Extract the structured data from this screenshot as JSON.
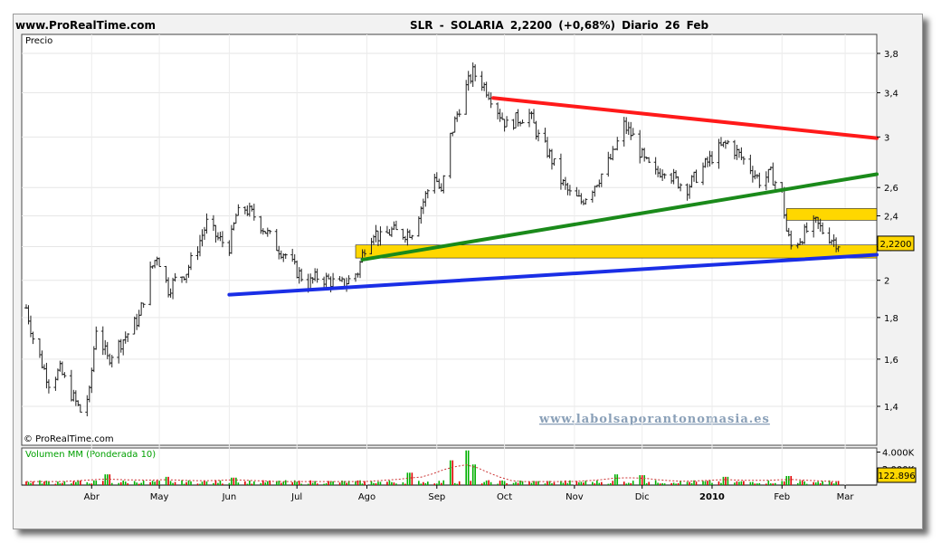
{
  "header": {
    "site": "www.ProRealTime.com",
    "title": "SLR - SOLARIA 2,2200 (+0,68%) Diario 26 Feb"
  },
  "price_panel": {
    "label": "Precio",
    "copyright": "© ProRealTime.com",
    "watermark": "www.labolsaporantonomasia.es"
  },
  "volume_panel": {
    "label": "Volumen MM (Ponderada 10)"
  },
  "colors": {
    "resistance": "#ff1a1a",
    "support_green": "#1a8a1a",
    "support_blue": "#1a2ee6",
    "zone": "#ffd700",
    "bar_up": "#00b000",
    "bar_down": "#e00000"
  },
  "chart_data": [
    {
      "type": "ohlc",
      "title": "SLR - SOLARIA",
      "x_labels": [
        "Abr",
        "May",
        "Jun",
        "Jul",
        "Ago",
        "Sep",
        "Oct",
        "Nov",
        "Dic",
        "2010",
        "Feb",
        "Mar"
      ],
      "y_ticks": [
        "3,8",
        "3,4",
        "3",
        "2,6",
        "2,4",
        "2,2",
        "2",
        "1,8",
        "1,6",
        "1,4"
      ],
      "ylim": [
        1.3,
        3.9
      ],
      "last_price_label": "2,2200",
      "last_value": 2.22,
      "close_series": [
        {
          "d": "2009-03-03",
          "v": 1.85
        },
        {
          "d": "2009-03-06",
          "v": 1.7
        },
        {
          "d": "2009-03-10",
          "v": 1.58
        },
        {
          "d": "2009-03-13",
          "v": 1.5
        },
        {
          "d": "2009-03-18",
          "v": 1.55
        },
        {
          "d": "2009-03-23",
          "v": 1.45
        },
        {
          "d": "2009-03-27",
          "v": 1.38
        },
        {
          "d": "2009-03-31",
          "v": 1.45
        },
        {
          "d": "2009-04-03",
          "v": 1.75
        },
        {
          "d": "2009-04-08",
          "v": 1.6
        },
        {
          "d": "2009-04-14",
          "v": 1.68
        },
        {
          "d": "2009-04-17",
          "v": 1.72
        },
        {
          "d": "2009-04-22",
          "v": 1.8
        },
        {
          "d": "2009-04-27",
          "v": 2.05
        },
        {
          "d": "2009-04-30",
          "v": 2.15
        },
        {
          "d": "2009-05-05",
          "v": 1.95
        },
        {
          "d": "2009-05-08",
          "v": 2.0
        },
        {
          "d": "2009-05-13",
          "v": 2.05
        },
        {
          "d": "2009-05-18",
          "v": 2.2
        },
        {
          "d": "2009-05-22",
          "v": 2.35
        },
        {
          "d": "2009-05-27",
          "v": 2.25
        },
        {
          "d": "2009-06-01",
          "v": 2.2
        },
        {
          "d": "2009-06-04",
          "v": 2.4
        },
        {
          "d": "2009-06-08",
          "v": 2.45
        },
        {
          "d": "2009-06-12",
          "v": 2.4
        },
        {
          "d": "2009-06-17",
          "v": 2.3
        },
        {
          "d": "2009-06-22",
          "v": 2.2
        },
        {
          "d": "2009-06-26",
          "v": 2.15
        },
        {
          "d": "2009-07-01",
          "v": 2.05
        },
        {
          "d": "2009-07-06",
          "v": 1.98
        },
        {
          "d": "2009-07-10",
          "v": 2.02
        },
        {
          "d": "2009-07-15",
          "v": 2.0
        },
        {
          "d": "2009-07-20",
          "v": 1.97
        },
        {
          "d": "2009-07-24",
          "v": 2.0
        },
        {
          "d": "2009-07-28",
          "v": 2.05
        },
        {
          "d": "2009-07-31",
          "v": 2.2
        },
        {
          "d": "2009-08-04",
          "v": 2.3
        },
        {
          "d": "2009-08-07",
          "v": 2.25
        },
        {
          "d": "2009-08-12",
          "v": 2.3
        },
        {
          "d": "2009-08-17",
          "v": 2.28
        },
        {
          "d": "2009-08-21",
          "v": 2.3
        },
        {
          "d": "2009-08-26",
          "v": 2.5
        },
        {
          "d": "2009-08-31",
          "v": 2.7
        },
        {
          "d": "2009-09-03",
          "v": 2.55
        },
        {
          "d": "2009-09-07",
          "v": 3.0
        },
        {
          "d": "2009-09-10",
          "v": 3.2
        },
        {
          "d": "2009-09-14",
          "v": 3.45
        },
        {
          "d": "2009-09-17",
          "v": 3.6
        },
        {
          "d": "2009-09-21",
          "v": 3.5
        },
        {
          "d": "2009-09-24",
          "v": 3.4
        },
        {
          "d": "2009-09-29",
          "v": 3.2
        },
        {
          "d": "2009-10-02",
          "v": 3.1
        },
        {
          "d": "2009-10-06",
          "v": 3.15
        },
        {
          "d": "2009-10-12",
          "v": 3.2
        },
        {
          "d": "2009-10-16",
          "v": 3.0
        },
        {
          "d": "2009-10-21",
          "v": 2.85
        },
        {
          "d": "2009-10-26",
          "v": 2.65
        },
        {
          "d": "2009-10-30",
          "v": 2.55
        },
        {
          "d": "2009-11-04",
          "v": 2.5
        },
        {
          "d": "2009-11-09",
          "v": 2.6
        },
        {
          "d": "2009-11-13",
          "v": 2.7
        },
        {
          "d": "2009-11-18",
          "v": 2.85
        },
        {
          "d": "2009-11-23",
          "v": 3.1
        },
        {
          "d": "2009-11-27",
          "v": 3.0
        },
        {
          "d": "2009-12-02",
          "v": 2.8
        },
        {
          "d": "2009-12-07",
          "v": 2.7
        },
        {
          "d": "2009-12-11",
          "v": 2.75
        },
        {
          "d": "2009-12-16",
          "v": 2.65
        },
        {
          "d": "2009-12-21",
          "v": 2.6
        },
        {
          "d": "2009-12-28",
          "v": 2.75
        },
        {
          "d": "2010-01-04",
          "v": 2.9
        },
        {
          "d": "2010-01-08",
          "v": 2.95
        },
        {
          "d": "2010-01-13",
          "v": 2.85
        },
        {
          "d": "2010-01-18",
          "v": 2.75
        },
        {
          "d": "2010-01-22",
          "v": 2.65
        },
        {
          "d": "2010-01-27",
          "v": 2.7
        },
        {
          "d": "2010-02-01",
          "v": 2.55
        },
        {
          "d": "2010-02-03",
          "v": 2.3
        },
        {
          "d": "2010-02-05",
          "v": 2.2
        },
        {
          "d": "2010-02-09",
          "v": 2.25
        },
        {
          "d": "2010-02-12",
          "v": 2.3
        },
        {
          "d": "2010-02-16",
          "v": 2.35
        },
        {
          "d": "2010-02-19",
          "v": 2.3
        },
        {
          "d": "2010-02-23",
          "v": 2.25
        },
        {
          "d": "2010-02-26",
          "v": 2.22
        }
      ],
      "trendlines": [
        {
          "name": "resistance",
          "from": {
            "d": "2009-09-26",
            "v": 3.35
          },
          "to": {
            "d": "2010-03-15",
            "v": 2.99
          }
        },
        {
          "name": "support-green",
          "from": {
            "d": "2009-07-30",
            "v": 2.12
          },
          "to": {
            "d": "2010-03-15",
            "v": 2.7
          }
        },
        {
          "name": "support-blue",
          "from": {
            "d": "2009-06-01",
            "v": 1.92
          },
          "to": {
            "d": "2010-03-15",
            "v": 2.15
          }
        }
      ],
      "zones": [
        {
          "name": "lower-support-zone",
          "from": "2009-07-27",
          "to": "2010-03-15",
          "low": 2.13,
          "high": 2.21
        },
        {
          "name": "upper-resistance-zone",
          "from": "2010-02-03",
          "to": "2010-03-15",
          "low": 2.37,
          "high": 2.45
        }
      ]
    },
    {
      "type": "bar",
      "title": "Volumen MM (Ponderada 10)",
      "y_ticks": [
        "4.000K",
        "2.000K"
      ],
      "last_value_label": "122.896",
      "peaks": [
        {
          "d": "2009-04-08",
          "v": 1300
        },
        {
          "d": "2009-05-04",
          "v": 1000
        },
        {
          "d": "2009-06-03",
          "v": 900
        },
        {
          "d": "2009-08-20",
          "v": 1500
        },
        {
          "d": "2009-09-07",
          "v": 3000
        },
        {
          "d": "2009-09-14",
          "v": 4200
        },
        {
          "d": "2009-09-18",
          "v": 2500
        },
        {
          "d": "2009-11-20",
          "v": 1300
        },
        {
          "d": "2009-12-01",
          "v": 1200
        },
        {
          "d": "2010-01-07",
          "v": 1000
        },
        {
          "d": "2010-02-04",
          "v": 1100
        }
      ]
    }
  ]
}
